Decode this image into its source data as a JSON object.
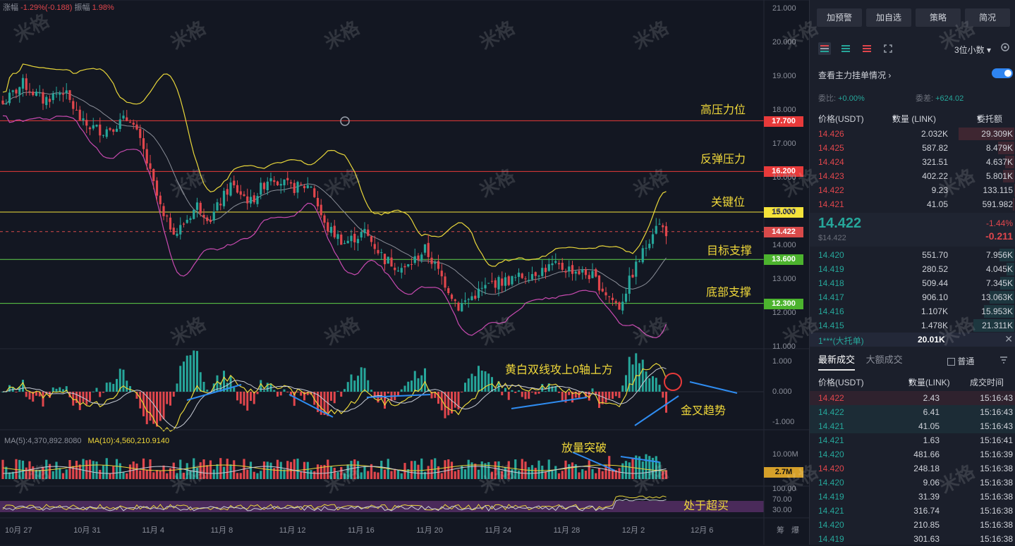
{
  "header": {
    "change_label": "涨幅",
    "change_value": "-1.29%(-0.188)",
    "amplitude_label": "振幅",
    "amplitude_value": "1.98%"
  },
  "watermark_text": "米格",
  "price_axis": [
    "21.000",
    "20.000",
    "19.000",
    "18.000",
    "17.000",
    "16.000",
    "15.000",
    "14.000",
    "13.000",
    "12.000",
    "11.000"
  ],
  "macd_axis": [
    "1.000",
    "0.000",
    "-1.000"
  ],
  "vol_axis": [
    "10.00M"
  ],
  "rsi_axis": [
    "100.00",
    "70.00",
    "30.00"
  ],
  "date_axis": [
    "10月 27",
    "10月 31",
    "11月 4",
    "11月 8",
    "11月 12",
    "11月 16",
    "11月 20",
    "11月 24",
    "11月 28",
    "12月 2",
    "12月 6"
  ],
  "axis_footer": [
    "筹",
    "爆"
  ],
  "levels": {
    "high_resistance": {
      "label": "高压力位",
      "price": "17.700",
      "color": "#e83a3a"
    },
    "rebound_resistance": {
      "label": "反弹压力",
      "price": "16.200",
      "color": "#e83a3a"
    },
    "key_level": {
      "label": "关键位",
      "price": "15.000",
      "color": "#f5e33a"
    },
    "last": {
      "price": "14.422",
      "color": "#d84a4a"
    },
    "target_support": {
      "label": "目标支撑",
      "price": "13.600",
      "color": "#5fd14a"
    },
    "bottom_support": {
      "label": "底部支撑",
      "price": "12.300",
      "color": "#5fd14a"
    }
  },
  "annotations": {
    "macd_note": "黄白双线攻上0轴上方",
    "golden_cross": "金叉趋势",
    "volume_breakout": "放量突破",
    "overbought": "处于超买"
  },
  "volume": {
    "ma5": "MA(5):4,370,892.8080",
    "ma10": "MA(10):4,560,210.9140",
    "current_tag": "2.7M"
  },
  "panel": {
    "buttons": [
      "加预警",
      "加自选",
      "策略",
      "简况"
    ],
    "decimals": "3位小数",
    "depth_link": "查看主力挂单情况",
    "ratio_label": "委比:",
    "ratio_value": "+0.00%",
    "diff_label": "委差:",
    "diff_value": "+624.02",
    "ob_headers": [
      "价格(USDT)",
      "数量 (LINK)",
      "委托额"
    ],
    "asks": [
      {
        "price": "14.426",
        "qty": "2.032K",
        "amount": "29.309K"
      },
      {
        "price": "14.425",
        "qty": "587.82",
        "amount": "8.479K"
      },
      {
        "price": "14.424",
        "qty": "321.51",
        "amount": "4.637K"
      },
      {
        "price": "14.423",
        "qty": "402.22",
        "amount": "5.801K"
      },
      {
        "price": "14.422",
        "qty": "9.23",
        "amount": "133.115"
      },
      {
        "price": "14.421",
        "qty": "41.05",
        "amount": "591.982"
      }
    ],
    "mid_price": "14.422",
    "mid_price_usd": "$14.422",
    "mid_change_pct": "-1.44%",
    "mid_change": "-0.211",
    "bids": [
      {
        "price": "14.420",
        "qty": "551.70",
        "amount": "7.956K"
      },
      {
        "price": "14.419",
        "qty": "280.52",
        "amount": "4.045K"
      },
      {
        "price": "14.418",
        "qty": "509.44",
        "amount": "7.345K"
      },
      {
        "price": "14.417",
        "qty": "906.10",
        "amount": "13.063K"
      },
      {
        "price": "14.416",
        "qty": "1.107K",
        "amount": "15.953K"
      },
      {
        "price": "14.415",
        "qty": "1.478K",
        "amount": "21.311K"
      }
    ],
    "big_order_label": "1***(大托单)",
    "big_order_value": "20.01K",
    "tab_latest": "最新成交",
    "tab_large": "大额成交",
    "normal_label": "普通",
    "trade_headers": [
      "价格(USDT)",
      "数量(LINK)",
      "成交时间"
    ],
    "trades": [
      {
        "price": "14.422",
        "qty": "2.43",
        "time": "15:16:43",
        "side": "red"
      },
      {
        "price": "14.422",
        "qty": "6.41",
        "time": "15:16:43",
        "side": "green"
      },
      {
        "price": "14.421",
        "qty": "41.05",
        "time": "15:16:43",
        "side": "green"
      },
      {
        "price": "14.421",
        "qty": "1.63",
        "time": "15:16:41",
        "side": "green"
      },
      {
        "price": "14.420",
        "qty": "481.66",
        "time": "15:16:39",
        "side": "green"
      },
      {
        "price": "14.420",
        "qty": "248.18",
        "time": "15:16:38",
        "side": "red"
      },
      {
        "price": "14.420",
        "qty": "9.06",
        "time": "15:16:38",
        "side": "green"
      },
      {
        "price": "14.419",
        "qty": "31.39",
        "time": "15:16:38",
        "side": "green"
      },
      {
        "price": "14.421",
        "qty": "316.74",
        "time": "15:16:38",
        "side": "green"
      },
      {
        "price": "14.420",
        "qty": "210.85",
        "time": "15:16:38",
        "side": "green"
      },
      {
        "price": "14.419",
        "qty": "301.63",
        "time": "15:16:38",
        "side": "green"
      }
    ]
  },
  "chart_data": {
    "type": "candlestick",
    "anchors": [
      [
        0,
        18.2
      ],
      [
        6,
        18.8
      ],
      [
        12,
        18.3
      ],
      [
        18,
        18.6
      ],
      [
        24,
        17.6
      ],
      [
        30,
        17.4
      ],
      [
        38,
        17.8
      ],
      [
        42,
        16.8
      ],
      [
        48,
        14.8
      ],
      [
        52,
        14.4
      ],
      [
        58,
        15.2
      ],
      [
        62,
        14.8
      ],
      [
        68,
        15.8
      ],
      [
        74,
        15.3
      ],
      [
        80,
        16.1
      ],
      [
        86,
        15.7
      ],
      [
        92,
        15.8
      ],
      [
        96,
        14.6
      ],
      [
        102,
        14.1
      ],
      [
        108,
        14.4
      ],
      [
        114,
        13.6
      ],
      [
        120,
        13.3
      ],
      [
        126,
        13.9
      ],
      [
        132,
        12.9
      ],
      [
        136,
        12.2
      ],
      [
        140,
        12.5
      ],
      [
        146,
        12.9
      ],
      [
        152,
        13.0
      ],
      [
        158,
        13.2
      ],
      [
        164,
        13.4
      ],
      [
        170,
        13.3
      ],
      [
        176,
        13.1
      ],
      [
        180,
        12.6
      ],
      [
        184,
        12.2
      ],
      [
        188,
        13.2
      ],
      [
        192,
        14.0
      ],
      [
        195,
        14.7
      ],
      [
        198,
        14.422
      ]
    ],
    "price_range": [
      11.0,
      21.0
    ],
    "last_price": 14.422
  }
}
